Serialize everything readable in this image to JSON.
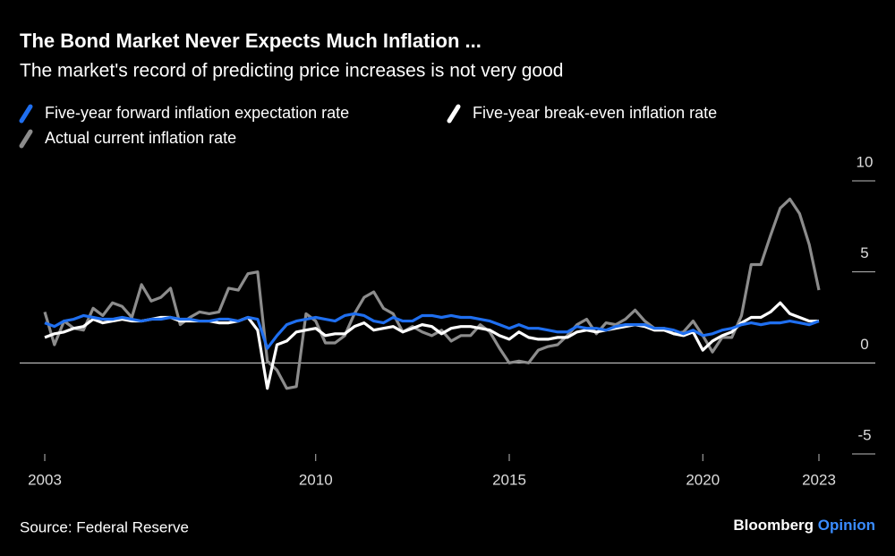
{
  "chart_data": {
    "type": "line",
    "title": "The Bond Market Never Expects Much Inflation ...",
    "subtitle": "The market's record of predicting price increases is not very good",
    "source": "Source: Federal Reserve",
    "brand_name": "Bloomberg",
    "brand_section": "Opinion",
    "x": [
      2003,
      2003.25,
      2003.5,
      2003.75,
      2004,
      2004.25,
      2004.5,
      2004.75,
      2005,
      2005.25,
      2005.5,
      2005.75,
      2006,
      2006.25,
      2006.5,
      2006.75,
      2007,
      2007.25,
      2007.5,
      2007.75,
      2008,
      2008.25,
      2008.5,
      2008.75,
      2009,
      2009.25,
      2009.5,
      2009.75,
      2010,
      2010.25,
      2010.5,
      2010.75,
      2011,
      2011.25,
      2011.5,
      2011.75,
      2012,
      2012.25,
      2012.5,
      2012.75,
      2013,
      2013.25,
      2013.5,
      2013.75,
      2014,
      2014.25,
      2014.5,
      2014.75,
      2015,
      2015.25,
      2015.5,
      2015.75,
      2016,
      2016.25,
      2016.5,
      2016.75,
      2017,
      2017.25,
      2017.5,
      2017.75,
      2018,
      2018.25,
      2018.5,
      2018.75,
      2019,
      2019.25,
      2019.5,
      2019.75,
      2020,
      2020.25,
      2020.5,
      2020.75,
      2021,
      2021.25,
      2021.5,
      2021.75,
      2022,
      2022.25,
      2022.5,
      2022.75,
      2023
    ],
    "series": [
      {
        "name": "Five-year forward inflation expectation rate",
        "color": "#1f6ff0",
        "values": [
          2.2,
          2.0,
          2.3,
          2.4,
          2.6,
          2.5,
          2.4,
          2.4,
          2.5,
          2.4,
          2.3,
          2.4,
          2.4,
          2.5,
          2.4,
          2.4,
          2.3,
          2.3,
          2.4,
          2.4,
          2.3,
          2.5,
          2.4,
          0.8,
          1.5,
          2.1,
          2.3,
          2.4,
          2.5,
          2.4,
          2.3,
          2.6,
          2.7,
          2.6,
          2.3,
          2.2,
          2.5,
          2.3,
          2.3,
          2.6,
          2.6,
          2.5,
          2.6,
          2.5,
          2.5,
          2.4,
          2.3,
          2.1,
          1.9,
          2.1,
          1.9,
          1.9,
          1.8,
          1.7,
          1.7,
          2.0,
          1.9,
          1.9,
          1.8,
          2.0,
          2.1,
          2.1,
          2.1,
          1.9,
          1.9,
          1.8,
          1.6,
          1.8,
          1.5,
          1.6,
          1.8,
          1.9,
          2.1,
          2.2,
          2.1,
          2.2,
          2.2,
          2.3,
          2.2,
          2.1,
          2.3
        ]
      },
      {
        "name": "Five-year break-even inflation rate",
        "color": "#ffffff",
        "values": [
          1.4,
          1.6,
          1.7,
          1.9,
          2.0,
          2.4,
          2.2,
          2.3,
          2.4,
          2.3,
          2.3,
          2.4,
          2.5,
          2.5,
          2.3,
          2.3,
          2.3,
          2.3,
          2.2,
          2.2,
          2.3,
          2.5,
          1.8,
          -1.4,
          1.0,
          1.2,
          1.7,
          1.8,
          1.9,
          1.5,
          1.6,
          1.6,
          2.0,
          2.2,
          1.8,
          1.9,
          2.0,
          1.7,
          1.9,
          2.1,
          2.0,
          1.6,
          1.9,
          2.0,
          2.0,
          1.9,
          1.8,
          1.5,
          1.3,
          1.7,
          1.4,
          1.3,
          1.3,
          1.4,
          1.4,
          1.7,
          1.8,
          1.7,
          1.8,
          1.9,
          2.0,
          2.1,
          2.0,
          1.8,
          1.8,
          1.6,
          1.5,
          1.7,
          0.7,
          1.2,
          1.5,
          1.7,
          2.2,
          2.5,
          2.5,
          2.8,
          3.3,
          2.7,
          2.5,
          2.3,
          2.3
        ]
      },
      {
        "name": "Actual current inflation rate",
        "color": "#8c8c8c",
        "values": [
          2.8,
          1.0,
          2.3,
          1.9,
          1.8,
          3.0,
          2.6,
          3.3,
          3.1,
          2.5,
          4.3,
          3.4,
          3.6,
          4.1,
          2.1,
          2.5,
          2.8,
          2.7,
          2.8,
          4.1,
          4.0,
          4.9,
          5.0,
          0.1,
          -0.4,
          -1.4,
          -1.3,
          2.7,
          2.3,
          1.1,
          1.1,
          1.5,
          2.7,
          3.6,
          3.9,
          3.0,
          2.7,
          1.7,
          2.0,
          1.7,
          1.5,
          1.8,
          1.2,
          1.5,
          1.5,
          2.1,
          1.7,
          0.8,
          0.0,
          0.1,
          0.0,
          0.7,
          0.9,
          1.0,
          1.5,
          2.1,
          2.4,
          1.6,
          2.2,
          2.1,
          2.4,
          2.9,
          2.3,
          1.9,
          1.9,
          1.6,
          1.7,
          2.3,
          1.5,
          0.6,
          1.4,
          1.4,
          2.6,
          5.4,
          5.4,
          7.0,
          8.5,
          9.0,
          8.2,
          6.5,
          4.0
        ]
      }
    ],
    "xlim": [
      2003,
      2023
    ],
    "xticks": [
      2003,
      2010,
      2015,
      2020,
      2023
    ],
    "ylim": [
      -5,
      10
    ],
    "yticks": [
      10,
      5,
      0,
      -5
    ],
    "legend": "top-left"
  }
}
